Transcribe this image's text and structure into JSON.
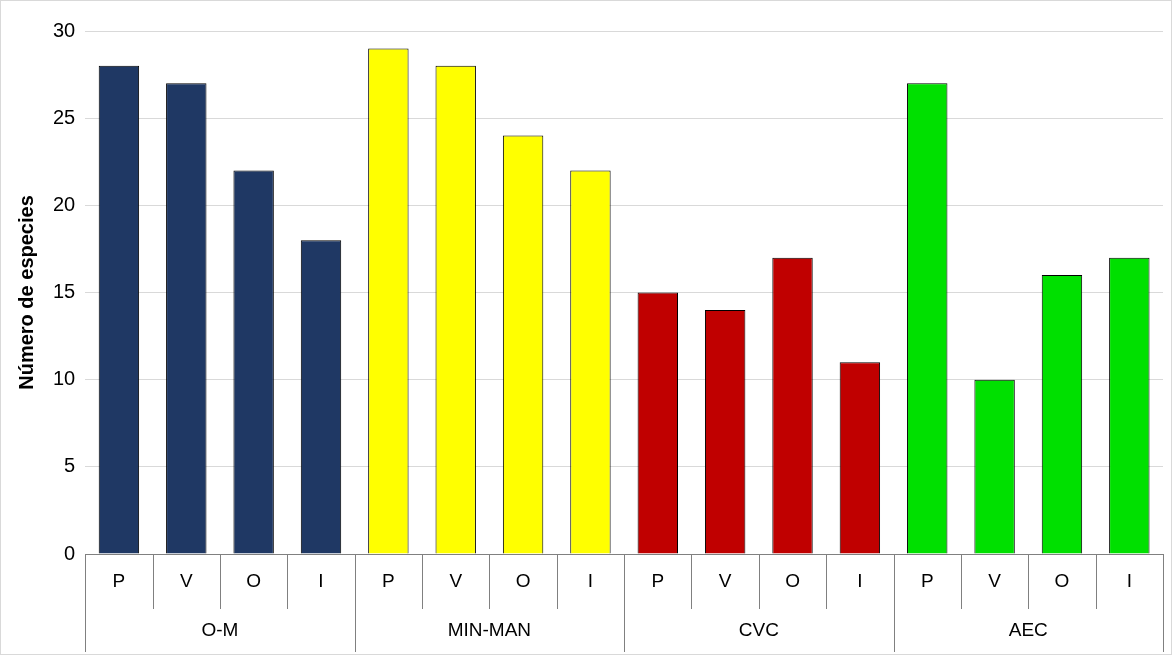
{
  "chart_data": {
    "type": "bar",
    "ylabel": "Número de especies",
    "categories": [
      "O-M",
      "MIN-MAN",
      "CVC",
      "AEC"
    ],
    "series": [
      {
        "name": "P",
        "colors": [
          "#1f3864",
          "#ffff00",
          "#c00000",
          "#00e000"
        ],
        "values": [
          28,
          29,
          15,
          27
        ]
      },
      {
        "name": "V",
        "colors": [
          "#1f3864",
          "#ffff00",
          "#c00000",
          "#00e000"
        ],
        "values": [
          27,
          28,
          14,
          10
        ]
      },
      {
        "name": "O",
        "colors": [
          "#1f3864",
          "#ffff00",
          "#c00000",
          "#00e000"
        ],
        "values": [
          22,
          24,
          17,
          16
        ]
      },
      {
        "name": "I",
        "colors": [
          "#1f3864",
          "#ffff00",
          "#c00000",
          "#00e000"
        ],
        "values": [
          18,
          22,
          11,
          17
        ]
      }
    ],
    "ylim": [
      0,
      30
    ],
    "yticks": [
      0,
      5,
      10,
      15,
      20,
      25,
      30
    ],
    "grid": "y",
    "legend": false
  }
}
